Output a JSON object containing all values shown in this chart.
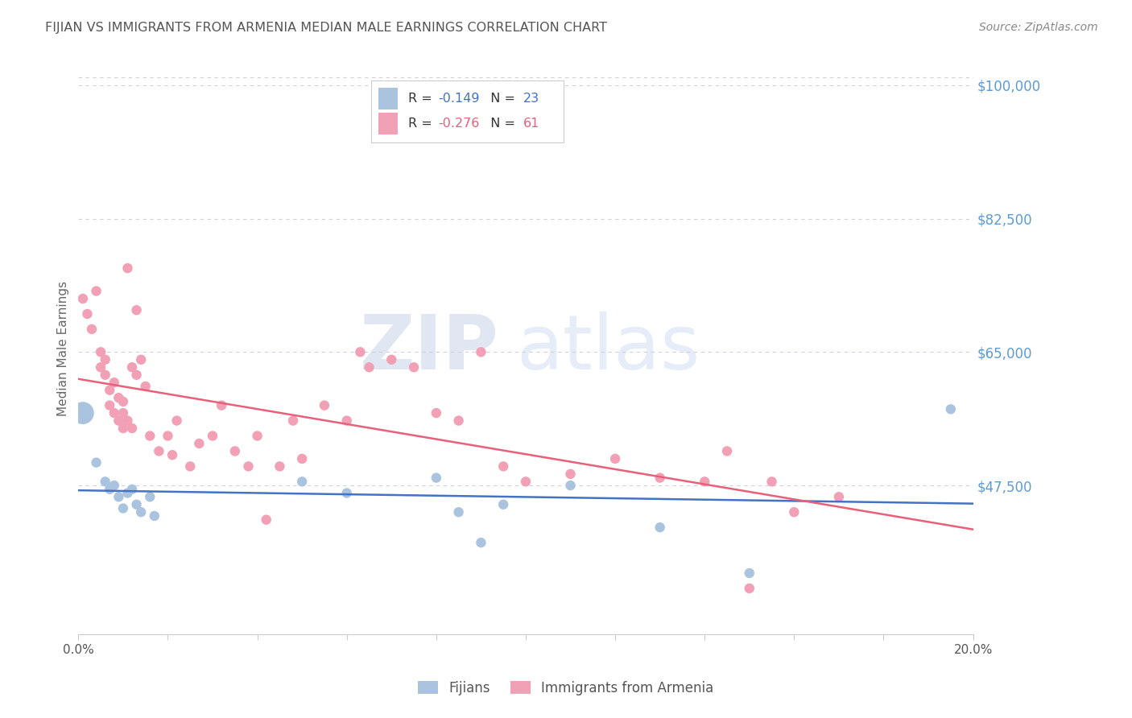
{
  "title": "FIJIAN VS IMMIGRANTS FROM ARMENIA MEDIAN MALE EARNINGS CORRELATION CHART",
  "source": "Source: ZipAtlas.com",
  "ylabel": "Median Male Earnings",
  "ytick_labels": [
    "$47,500",
    "$65,000",
    "$82,500",
    "$100,000"
  ],
  "ytick_values": [
    47500,
    65000,
    82500,
    100000
  ],
  "ymin": 28000,
  "ymax": 103000,
  "xmin": 0.0,
  "xmax": 0.2,
  "watermark_zip": "ZIP",
  "watermark_atlas": "atlas",
  "legend_label_fijian": "Fijians",
  "legend_label_armenia": "Immigrants from Armenia",
  "fijian_color": "#aac4e0",
  "armenia_color": "#f2a0b5",
  "fijian_line_color": "#4472c4",
  "armenia_line_color": "#e8607a",
  "title_color": "#555555",
  "ylabel_color": "#666666",
  "right_tick_color": "#5b9bd5",
  "grid_color": "#d0d0e0",
  "fijian_R": -0.149,
  "fijian_N": 23,
  "armenia_R": -0.276,
  "armenia_N": 61,
  "fijian_x": [
    0.001,
    0.004,
    0.006,
    0.007,
    0.008,
    0.009,
    0.01,
    0.011,
    0.012,
    0.013,
    0.014,
    0.016,
    0.017,
    0.05,
    0.06,
    0.08,
    0.085,
    0.09,
    0.095,
    0.11,
    0.13,
    0.15,
    0.195
  ],
  "fijian_y": [
    57000,
    50500,
    48000,
    47000,
    47500,
    46000,
    44500,
    46500,
    47000,
    45000,
    44000,
    46000,
    43500,
    48000,
    46500,
    48500,
    44000,
    40000,
    45000,
    47500,
    42000,
    36000,
    57500
  ],
  "fijian_size": [
    400,
    80,
    80,
    80,
    80,
    80,
    80,
    80,
    80,
    80,
    80,
    80,
    80,
    80,
    80,
    80,
    80,
    80,
    80,
    80,
    80,
    80,
    80
  ],
  "armenia_x": [
    0.001,
    0.002,
    0.003,
    0.004,
    0.005,
    0.005,
    0.006,
    0.006,
    0.007,
    0.007,
    0.008,
    0.008,
    0.009,
    0.009,
    0.01,
    0.01,
    0.01,
    0.011,
    0.011,
    0.012,
    0.012,
    0.013,
    0.013,
    0.014,
    0.015,
    0.016,
    0.018,
    0.02,
    0.021,
    0.022,
    0.025,
    0.027,
    0.03,
    0.032,
    0.035,
    0.038,
    0.04,
    0.042,
    0.045,
    0.048,
    0.05,
    0.055,
    0.06,
    0.063,
    0.065,
    0.07,
    0.075,
    0.08,
    0.085,
    0.09,
    0.095,
    0.1,
    0.11,
    0.12,
    0.13,
    0.14,
    0.145,
    0.15,
    0.155,
    0.16,
    0.17
  ],
  "armenia_y": [
    72000,
    70000,
    68000,
    73000,
    65000,
    63000,
    64000,
    62000,
    60000,
    58000,
    61000,
    57000,
    59000,
    56000,
    58500,
    57000,
    55000,
    76000,
    56000,
    63000,
    55000,
    70500,
    62000,
    64000,
    60500,
    54000,
    52000,
    54000,
    51500,
    56000,
    50000,
    53000,
    54000,
    58000,
    52000,
    50000,
    54000,
    43000,
    50000,
    56000,
    51000,
    58000,
    56000,
    65000,
    63000,
    64000,
    63000,
    57000,
    56000,
    65000,
    50000,
    48000,
    49000,
    51000,
    48500,
    48000,
    52000,
    34000,
    48000,
    44000,
    46000
  ],
  "armenia_size": [
    80,
    80,
    80,
    80,
    80,
    80,
    80,
    80,
    80,
    80,
    80,
    80,
    80,
    80,
    80,
    80,
    80,
    80,
    80,
    80,
    80,
    80,
    80,
    80,
    80,
    80,
    80,
    80,
    80,
    80,
    80,
    80,
    80,
    80,
    80,
    80,
    80,
    80,
    80,
    80,
    80,
    80,
    80,
    80,
    80,
    80,
    80,
    80,
    80,
    80,
    80,
    80,
    80,
    80,
    80,
    80,
    80,
    80,
    80,
    80,
    80
  ]
}
